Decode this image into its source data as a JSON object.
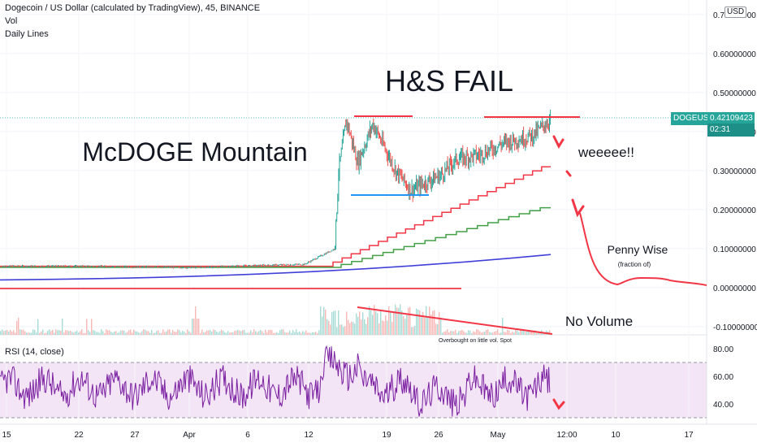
{
  "header": {
    "title": "Dogecoin / US Dollar (calculated by TradingView), 45, BINANCE",
    "indicator_vol": "Vol",
    "indicator_lines": "Daily Lines",
    "rsi_label": "RSI (14, close)",
    "currency": "USD"
  },
  "price_badge": {
    "symbol": "DOGEUSD",
    "price": "0.42109423",
    "countdown": "02:31"
  },
  "annotations": {
    "title_big": "H&S FAIL",
    "mountain": "McDOGE Mountain",
    "weee": "weeeee!!",
    "penny": "Penny Wise",
    "penny_sub": "(fraction of)",
    "novol": "No Volume",
    "overbought": "Overbought on little vol. Spot"
  },
  "colors": {
    "candle_up": "#26a69a",
    "candle_down": "#ef5350",
    "annotation_red": "#f23645",
    "neckline_blue": "#2196f3",
    "green_line": "#43a047",
    "blue_line": "#3f3fd9",
    "rsi_line": "#7b1fa2",
    "rsi_band": "#f3e5f5"
  },
  "chart_data": [
    {
      "type": "line",
      "title": "Dogecoin / US Dollar (calculated by TradingView), 45, BINANCE",
      "xlabel": "",
      "ylabel": "",
      "x": [
        "15",
        "22",
        "27",
        "Apr",
        "6",
        "12",
        "19",
        "26",
        "May",
        "12:00",
        "10",
        "17"
      ],
      "y_ticks": [
        "-0.10000000",
        "0.00000000",
        "0.10000000",
        "0.20000000",
        "0.30000000",
        "0.40000000",
        "0.50000000",
        "0.60000000",
        "0.70000000"
      ],
      "ylim": [
        -0.1,
        0.7
      ],
      "series": [
        {
          "x": [
            0,
            0.1,
            0.25,
            0.4,
            0.44,
            0.445,
            0.455,
            0.47,
            0.49,
            0.52,
            0.54,
            0.56,
            0.58,
            0.6,
            0.63,
            0.66,
            0.7,
            0.725
          ],
          "values": [
            0.055,
            0.055,
            0.052,
            0.06,
            0.1,
            0.3,
            0.43,
            0.32,
            0.42,
            0.3,
            0.25,
            0.27,
            0.29,
            0.33,
            0.34,
            0.37,
            0.39,
            0.435
          ]
        }
      ],
      "legend": "top-left",
      "grid": true,
      "annotations": [
        "H&S FAIL",
        "McDOGE Mountain",
        "weeeee!!",
        "Penny Wise",
        "(fraction of)",
        "No Volume",
        "Overbought on little vol. Spot"
      ]
    },
    {
      "type": "line",
      "title": "RSI (14, close)",
      "y_ticks": [
        "40.00",
        "60.00",
        "80.00"
      ],
      "ylim": [
        30,
        90
      ],
      "upper_band": 70,
      "lower_band": 30
    }
  ]
}
